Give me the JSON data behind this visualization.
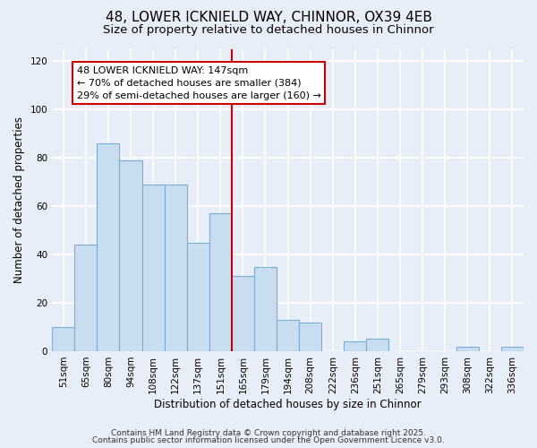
{
  "title": "48, LOWER ICKNIELD WAY, CHINNOR, OX39 4EB",
  "subtitle": "Size of property relative to detached houses in Chinnor",
  "xlabel": "Distribution of detached houses by size in Chinnor",
  "ylabel": "Number of detached properties",
  "bar_labels": [
    "51sqm",
    "65sqm",
    "80sqm",
    "94sqm",
    "108sqm",
    "122sqm",
    "137sqm",
    "151sqm",
    "165sqm",
    "179sqm",
    "194sqm",
    "208sqm",
    "222sqm",
    "236sqm",
    "251sqm",
    "265sqm",
    "279sqm",
    "293sqm",
    "308sqm",
    "322sqm",
    "336sqm"
  ],
  "bar_values": [
    10,
    44,
    86,
    79,
    69,
    69,
    45,
    57,
    31,
    35,
    13,
    12,
    0,
    4,
    5,
    0,
    0,
    0,
    2,
    0,
    2
  ],
  "bar_color": "#c8ddf0",
  "bar_edge_color": "#7aaed4",
  "background_color": "#e8eef8",
  "grid_color": "#ffffff",
  "vline_x": 7.5,
  "vline_color": "#cc0000",
  "ylim": [
    0,
    125
  ],
  "yticks": [
    0,
    20,
    40,
    60,
    80,
    100,
    120
  ],
  "annotation_title": "48 LOWER ICKNIELD WAY: 147sqm",
  "annotation_line1": "← 70% of detached houses are smaller (384)",
  "annotation_line2": "29% of semi-detached houses are larger (160) →",
  "annotation_box_facecolor": "#ffffff",
  "annotation_border_color": "#cc0000",
  "footnote1": "Contains HM Land Registry data © Crown copyright and database right 2025.",
  "footnote2": "Contains public sector information licensed under the Open Government Licence v3.0.",
  "title_fontsize": 11,
  "subtitle_fontsize": 9.5,
  "axis_label_fontsize": 8.5,
  "tick_fontsize": 7.5,
  "annotation_fontsize": 8,
  "footnote_fontsize": 6.5
}
